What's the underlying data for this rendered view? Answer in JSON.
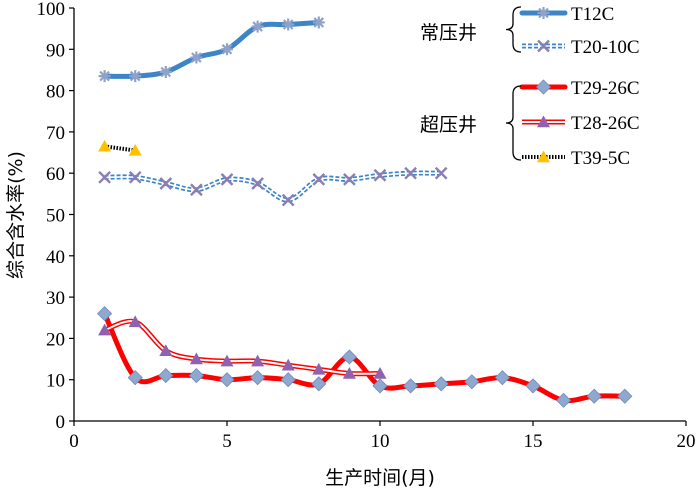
{
  "chart_data": {
    "type": "line",
    "xlabel": "生产时间(月)",
    "ylabel": "综合含水率(%)",
    "xlim": [
      0,
      20
    ],
    "ylim": [
      0,
      100
    ],
    "xticks": [
      "0",
      "5",
      "10",
      "15",
      "20"
    ],
    "yticks": [
      "0",
      "10",
      "20",
      "30",
      "40",
      "50",
      "60",
      "70",
      "80",
      "90",
      "100"
    ],
    "grid": false,
    "legend_placement": "top-right",
    "legend_groups": [
      {
        "label": "常压井",
        "series": [
          "T12C",
          "T20-10C"
        ]
      },
      {
        "label": "超压井",
        "series": [
          "T29-26C",
          "T28-26C",
          "T39-5C"
        ]
      }
    ],
    "series": [
      {
        "name": "T12C",
        "color": "#3d85c6",
        "marker": "asterisk",
        "x": [
          1,
          2,
          3,
          4,
          5,
          6,
          7,
          8
        ],
        "y": [
          83.5,
          83.5,
          84.5,
          88,
          90,
          95.5,
          96,
          96.5
        ]
      },
      {
        "name": "T20-10C",
        "color": "#3d85c6",
        "marker": "x",
        "x": [
          1,
          2,
          3,
          4,
          5,
          6,
          7,
          8,
          9,
          10,
          11,
          12
        ],
        "y": [
          59,
          59,
          57.5,
          56,
          58.5,
          57.5,
          53.5,
          58.5,
          58.5,
          59.5,
          60,
          60
        ]
      },
      {
        "name": "T29-26C",
        "color": "#ff0000",
        "marker": "diamond",
        "x": [
          1,
          2,
          3,
          4,
          5,
          6,
          7,
          8,
          9,
          10,
          11,
          12,
          13,
          14,
          15,
          16,
          17,
          18
        ],
        "y": [
          26,
          10.5,
          11,
          11,
          10,
          10.5,
          10,
          9,
          15.5,
          8.5,
          8.5,
          9,
          9.5,
          10.5,
          8.5,
          5,
          6,
          6
        ]
      },
      {
        "name": "T28-26C",
        "color": "#ff0000",
        "marker": "triangle",
        "x": [
          1,
          2,
          3,
          4,
          5,
          6,
          7,
          8,
          9,
          10
        ],
        "y": [
          22,
          24,
          17,
          15,
          14.5,
          14.5,
          13.5,
          12.5,
          11.5,
          11.5
        ]
      },
      {
        "name": "T39-5C",
        "color": "#000000",
        "marker": "triangle-yellow",
        "x": [
          1,
          2
        ],
        "y": [
          66.5,
          65.5
        ]
      }
    ]
  }
}
